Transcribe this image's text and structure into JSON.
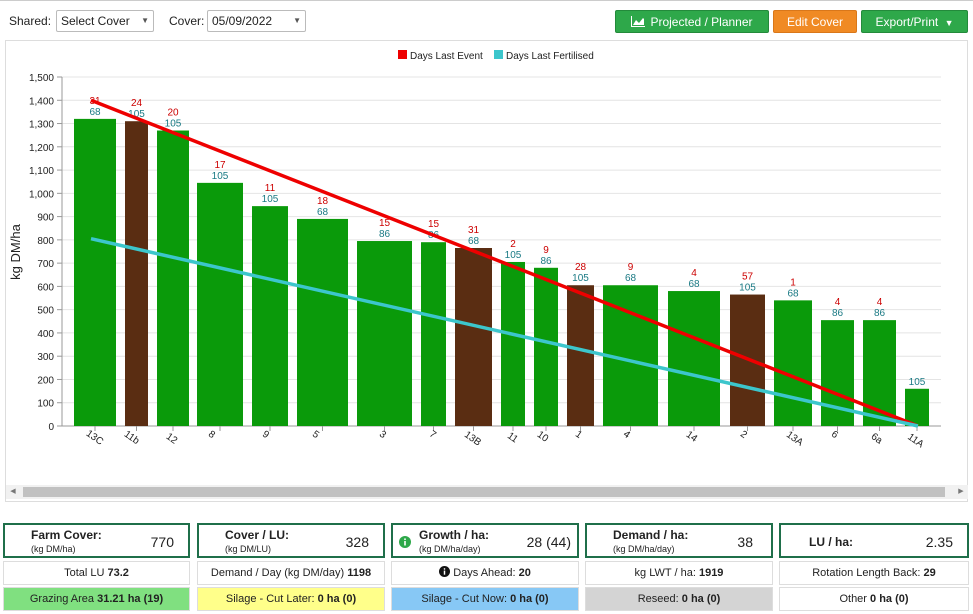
{
  "toolbar": {
    "shared_label": "Shared:",
    "shared_value": "Select Cover",
    "cover_label": "Cover:",
    "cover_value": "05/09/2022",
    "projected_label": "Projected / Planner",
    "edit_label": "Edit Cover",
    "export_label": "Export/Print"
  },
  "icons": [
    "chart-icon",
    "caret-down-icon",
    "info-icon",
    "scroll-left-icon",
    "scroll-right-icon"
  ],
  "colors": {
    "bar_green": "#0a9a0a",
    "bar_brown": "#5a2d12",
    "line_red": "#ee0000",
    "line_teal": "#3cc6cc",
    "card_border": "#1f6f4a",
    "label_red": "#cc0000",
    "label_teal": "#1a7a84"
  },
  "chart_data": {
    "type": "bar",
    "ylabel": "kg DM/ha",
    "ylim": [
      0,
      1500
    ],
    "yticks": [
      "0",
      "100",
      "200",
      "300",
      "400",
      "500",
      "600",
      "700",
      "800",
      "900",
      "1,000",
      "1,100",
      "1,200",
      "1,300",
      "1,400",
      "1,500"
    ],
    "grid": true,
    "legend_position": "top-center",
    "legend": [
      {
        "name": "Days Last Event",
        "color": "#ee0000"
      },
      {
        "name": "Days Last Fertilised",
        "color": "#3cc6cc"
      }
    ],
    "categories": [
      "13C",
      "11b",
      "12",
      "8",
      "9",
      "5",
      "3",
      "7",
      "13B",
      "11",
      "10",
      "1",
      "4",
      "14",
      "2",
      "13A",
      "6",
      "6a",
      "11A"
    ],
    "values": [
      1320,
      1310,
      1270,
      1045,
      945,
      890,
      795,
      790,
      765,
      705,
      680,
      605,
      605,
      580,
      565,
      540,
      455,
      455,
      160
    ],
    "bar_types": [
      "green",
      "brown",
      "green",
      "green",
      "green",
      "green",
      "green",
      "green",
      "brown",
      "green",
      "green",
      "brown",
      "green",
      "green",
      "brown",
      "green",
      "green",
      "green",
      "green"
    ],
    "days_last_event": [
      "31",
      "24",
      "20",
      "17",
      "11",
      "18",
      "15",
      "15",
      "31",
      "2",
      "9",
      "28",
      "9",
      "4",
      "57",
      "1",
      "4",
      "4",
      ""
    ],
    "days_last_fertilised": [
      "68",
      "105",
      "105",
      "105",
      "105",
      "68",
      "86",
      "86",
      "68",
      "105",
      "86",
      "105",
      "68",
      "68",
      "105",
      "68",
      "86",
      "86",
      "105"
    ],
    "lines": [
      {
        "name": "Days Last Event",
        "from": 1400,
        "to": 0
      },
      {
        "name": "Days Last Fertilised",
        "from": 805,
        "to": 0
      }
    ]
  },
  "summary": {
    "farm_cover": {
      "title": "Farm Cover:",
      "unit": "(kg DM/ha)",
      "value": "770"
    },
    "cover_lu": {
      "title": "Cover / LU:",
      "unit": "(kg DM/LU)",
      "value": "328"
    },
    "growth": {
      "title": "Growth / ha:",
      "unit": "(kg DM/ha/day)",
      "value": "28 (44)"
    },
    "demand": {
      "title": "Demand / ha:",
      "unit": "(kg DM/ha/day)",
      "value": "38"
    },
    "lu_ha": {
      "title": "LU / ha:",
      "value": "2.35"
    }
  },
  "stats": {
    "total_lu_label": "Total LU",
    "total_lu_value": "73.2",
    "demand_day_label": "Demand / Day (kg DM/day)",
    "demand_day_value": "1198",
    "days_ahead_label": "Days Ahead:",
    "days_ahead_value": "20",
    "lwt_label": "kg LWT / ha:",
    "lwt_value": "1919",
    "rotation_label": "Rotation Length Back:",
    "rotation_value": "29"
  },
  "areas": {
    "grazing_label": "Grazing Area",
    "grazing_value": "31.21 ha (19)",
    "silage_later_label": "Silage - Cut Later:",
    "silage_later_value": "0 ha (0)",
    "silage_now_label": "Silage - Cut Now:",
    "silage_now_value": "0 ha (0)",
    "reseed_label": "Reseed:",
    "reseed_value": "0 ha (0)",
    "other_label": "Other",
    "other_value": "0 ha (0)"
  }
}
